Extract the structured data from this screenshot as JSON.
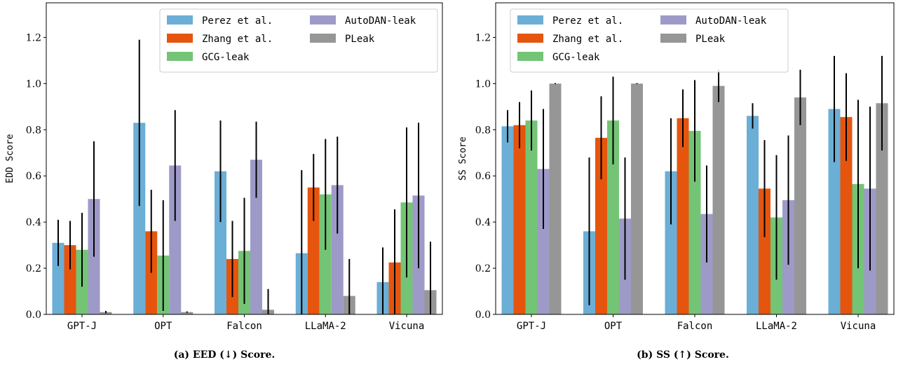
{
  "colors": {
    "Perez et al.": "#6baed6",
    "Zhang et al.": "#e6550d",
    "GCG-leak": "#74c476",
    "AutoDAN-leak": "#9e9ac8",
    "PLeak": "#969696",
    "error": "#000000"
  },
  "chart_data": [
    {
      "type": "bar",
      "caption": "(a) EED (↓) Score.",
      "ylabel": "EDD Score",
      "xlabel": "",
      "ylim": [
        0,
        1.35
      ],
      "yticks": [
        "0.0",
        "0.2",
        "0.4",
        "0.6",
        "0.8",
        "1.0",
        "1.2"
      ],
      "grid": false,
      "legend": "top-right",
      "categories": [
        "GPT-J",
        "OPT",
        "Falcon",
        "LLaMA-2",
        "Vicuna"
      ],
      "series": [
        {
          "name": "Perez et al.",
          "values": [
            0.31,
            0.83,
            0.62,
            0.265,
            0.14
          ],
          "err": [
            0.1,
            0.36,
            0.22,
            0.36,
            0.15
          ]
        },
        {
          "name": "Zhang et al.",
          "values": [
            0.3,
            0.36,
            0.24,
            0.55,
            0.225
          ],
          "err": [
            0.105,
            0.18,
            0.165,
            0.145,
            0.23
          ]
        },
        {
          "name": "GCG-leak",
          "values": [
            0.28,
            0.255,
            0.275,
            0.52,
            0.485
          ],
          "err": [
            0.16,
            0.24,
            0.23,
            0.24,
            0.325
          ]
        },
        {
          "name": "AutoDAN-leak",
          "values": [
            0.5,
            0.645,
            0.67,
            0.56,
            0.515
          ],
          "err": [
            0.25,
            0.24,
            0.165,
            0.21,
            0.315
          ]
        },
        {
          "name": "PLeak",
          "values": [
            0.01,
            0.01,
            0.02,
            0.08,
            0.105
          ],
          "err": [
            0.005,
            0.003,
            0.09,
            0.16,
            0.21
          ]
        }
      ]
    },
    {
      "type": "bar",
      "caption": "(b) SS (↑) Score.",
      "ylabel": "SS Score",
      "xlabel": "",
      "ylim": [
        0,
        1.35
      ],
      "yticks": [
        "0.0",
        "0.2",
        "0.4",
        "0.6",
        "0.8",
        "1.0",
        "1.2"
      ],
      "grid": false,
      "legend": "top-left",
      "categories": [
        "GPT-J",
        "OPT",
        "Falcon",
        "LLaMA-2",
        "Vicuna"
      ],
      "series": [
        {
          "name": "Perez et al.",
          "values": [
            0.815,
            0.36,
            0.62,
            0.86,
            0.89
          ],
          "err": [
            0.07,
            0.32,
            0.23,
            0.055,
            0.23
          ]
        },
        {
          "name": "Zhang et al.",
          "values": [
            0.82,
            0.765,
            0.85,
            0.545,
            0.855
          ],
          "err": [
            0.1,
            0.18,
            0.125,
            0.21,
            0.19
          ]
        },
        {
          "name": "GCG-leak",
          "values": [
            0.84,
            0.84,
            0.795,
            0.42,
            0.565
          ],
          "err": [
            0.13,
            0.19,
            0.22,
            0.27,
            0.365
          ]
        },
        {
          "name": "AutoDAN-leak",
          "values": [
            0.63,
            0.415,
            0.435,
            0.495,
            0.545
          ],
          "err": [
            0.26,
            0.265,
            0.21,
            0.28,
            0.355
          ]
        },
        {
          "name": "PLeak",
          "values": [
            1.0,
            1.0,
            0.99,
            0.94,
            0.915
          ],
          "err": [
            0.002,
            0.002,
            0.07,
            0.12,
            0.205
          ]
        }
      ]
    }
  ]
}
